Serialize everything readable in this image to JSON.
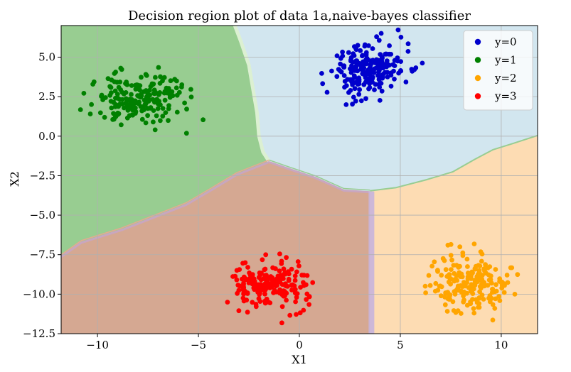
{
  "chart_data": {
    "type": "scatter",
    "title": "Decision region plot of data 1a,naive-bayes classifier",
    "xlabel": "X1",
    "ylabel": "X2",
    "xlim": [
      -11.8,
      11.8
    ],
    "ylim": [
      -12.5,
      7.0
    ],
    "xticks": [
      -10,
      -5,
      0,
      5,
      10
    ],
    "yticks": [
      -12.5,
      -10.0,
      -7.5,
      -5.0,
      -2.5,
      0.0,
      2.5,
      5.0
    ],
    "grid": true,
    "legend_position": "top-right",
    "regions": [
      {
        "class": "y=0",
        "color": "#d2e6ef"
      },
      {
        "class": "y=1",
        "color": "#98cd91"
      },
      {
        "class": "y=2",
        "color": "#fddcb3"
      },
      {
        "class": "y=3",
        "color": "#d5a892"
      }
    ],
    "boundaries": {
      "blue_green": [
        [
          -3.2,
          7.0
        ],
        [
          -2.9,
          6.0
        ],
        [
          -2.5,
          4.5
        ],
        [
          -2.3,
          3.0
        ],
        [
          -2.1,
          1.5
        ],
        [
          -2.0,
          0.0
        ],
        [
          -1.8,
          -1.0
        ],
        [
          -1.5,
          -1.6
        ]
      ],
      "green_brown": [
        [
          -11.8,
          -7.6
        ],
        [
          -10.8,
          -6.7
        ],
        [
          -8.8,
          -5.9
        ],
        [
          -7.2,
          -5.1
        ],
        [
          -5.6,
          -4.3
        ],
        [
          -4.4,
          -3.4
        ],
        [
          -3.1,
          -2.4
        ],
        [
          -1.5,
          -1.6
        ]
      ],
      "blue_brown": [
        [
          -1.5,
          -1.6
        ],
        [
          -0.6,
          -2.0
        ],
        [
          0.8,
          -2.6
        ],
        [
          2.2,
          -3.4
        ],
        [
          3.5,
          -3.5
        ]
      ],
      "brown_orange": [
        [
          3.5,
          -3.5
        ],
        [
          3.5,
          -12.5
        ]
      ],
      "blue_orange": [
        [
          3.5,
          -3.5
        ],
        [
          4.8,
          -3.3
        ],
        [
          6.3,
          -2.8
        ],
        [
          7.6,
          -2.3
        ],
        [
          8.7,
          -1.5
        ],
        [
          9.6,
          -0.9
        ],
        [
          10.6,
          -0.5
        ],
        [
          11.8,
          0.0
        ]
      ]
    },
    "series": [
      {
        "name": "y=0",
        "color": "#0000cc",
        "center": [
          3.5,
          4.2
        ],
        "spread": [
          0.95,
          0.9
        ],
        "n": 200,
        "seed": 11
      },
      {
        "name": "y=1",
        "color": "#008000",
        "center": [
          -8.0,
          2.5
        ],
        "spread": [
          1.05,
          0.75
        ],
        "n": 200,
        "seed": 23
      },
      {
        "name": "y=2",
        "color": "#ffa500",
        "center": [
          8.5,
          -9.2
        ],
        "spread": [
          0.95,
          0.9
        ],
        "n": 200,
        "seed": 37
      },
      {
        "name": "y=3",
        "color": "#ff0000",
        "center": [
          -1.5,
          -9.5
        ],
        "spread": [
          1.0,
          0.75
        ],
        "n": 200,
        "seed": 51
      }
    ]
  }
}
